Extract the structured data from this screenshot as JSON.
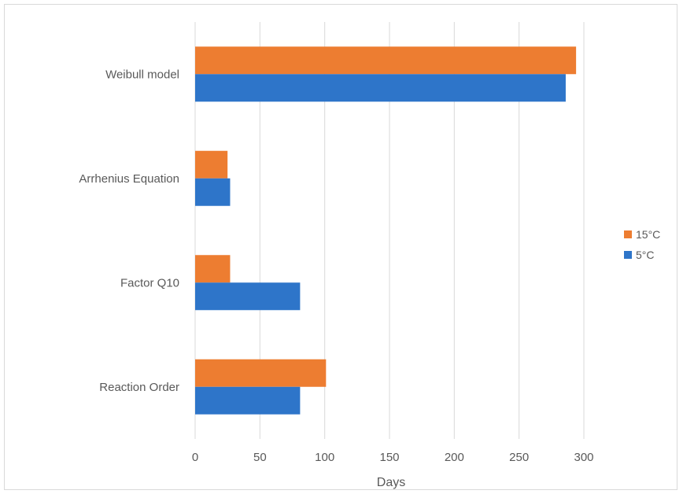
{
  "chart_data": {
    "type": "bar",
    "orientation": "horizontal",
    "categories": [
      "Weibull model",
      "Arrhenius Equation",
      "Factor Q10",
      "Reaction Order"
    ],
    "series": [
      {
        "name": "15°C",
        "color": "#ED7D31",
        "values": [
          294,
          25,
          27,
          101
        ]
      },
      {
        "name": "5°C",
        "color": "#2E75C9",
        "values": [
          286,
          27,
          81,
          81
        ]
      }
    ],
    "xlabel": "Days",
    "ylabel": "",
    "xlim": [
      0,
      300
    ],
    "xticks": [
      "0",
      "50",
      "100",
      "150",
      "200",
      "250",
      "300"
    ],
    "grid": true,
    "legend_position": "right"
  }
}
